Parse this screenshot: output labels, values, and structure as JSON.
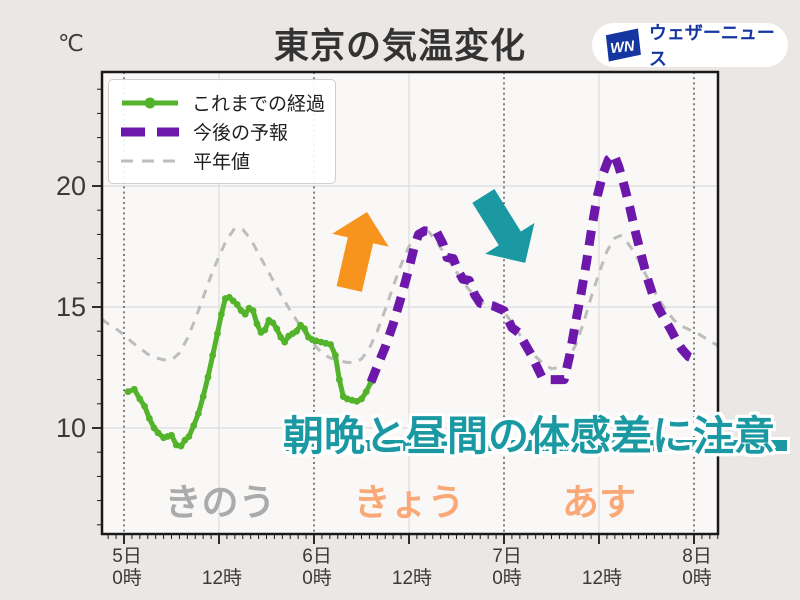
{
  "header": {
    "unit_label": "℃",
    "title": "東京の気温変化"
  },
  "logo": {
    "mark": "WN",
    "name": "ウェザーニュース"
  },
  "legend": {
    "items": [
      {
        "label": "これまでの経過",
        "key": "observed"
      },
      {
        "label": "今後の予報",
        "key": "forecast"
      },
      {
        "label": "平年値",
        "key": "normal"
      }
    ]
  },
  "colors": {
    "observed": "#53b32a",
    "forecast": "#6d18ab",
    "normal": "#bdbdbd",
    "teal": "#1b99a3",
    "orange": "#f7941e",
    "day_past": "#ababab",
    "day_future": "#f9a876",
    "logo_blue": "#1536a0",
    "grid_light": "#dcdcdc",
    "grid_day": "#4d4d4d",
    "axis": "#1a1a1a",
    "tick_text": "#3a3a3a",
    "plot_bg": "#f9f8f7"
  },
  "annotation": {
    "text": "朝晩と昼間の体感差に注意"
  },
  "day_labels": [
    {
      "text": "きのう",
      "t_center": 12,
      "tone": "past"
    },
    {
      "text": "きょう",
      "t_center": 36,
      "tone": "future"
    },
    {
      "text": "あす",
      "t_center": 60,
      "tone": "future"
    }
  ],
  "chart_data": {
    "type": "line",
    "title": "東京の気温変化",
    "ylabel": "℃",
    "x_unit": "hours_since_5th_00",
    "xlim": [
      -2.8,
      75.4
    ],
    "ylim": [
      5.6,
      24.7
    ],
    "y_ticks": [
      10,
      15,
      20
    ],
    "y_minor_step": 1,
    "x_minor_step": 1,
    "x_ticks": [
      {
        "t": 0,
        "day": "5日",
        "time": "0時"
      },
      {
        "t": 12,
        "day": "",
        "time": "12時"
      },
      {
        "t": 24,
        "day": "6日",
        "time": "0時"
      },
      {
        "t": 36,
        "day": "",
        "time": "12時"
      },
      {
        "t": 48,
        "day": "7日",
        "time": "0時"
      },
      {
        "t": 60,
        "day": "",
        "time": "12時"
      },
      {
        "t": 72,
        "day": "8日",
        "time": "0時"
      }
    ],
    "grid_day_lines_t": [
      0,
      24,
      48,
      72
    ],
    "grid_noon_lines_t": [
      12,
      36,
      60
    ],
    "legend_position": "upper-left",
    "series": [
      {
        "name": "これまでの経過",
        "key": "observed",
        "style": "solid-markers",
        "points": [
          [
            0.5,
            11.5
          ],
          [
            1.3,
            11.6
          ],
          [
            2,
            11.2
          ],
          [
            2.6,
            10.9
          ],
          [
            3.2,
            10.4
          ],
          [
            3.8,
            10.0
          ],
          [
            4.3,
            9.8
          ],
          [
            5,
            9.6
          ],
          [
            5.5,
            9.65
          ],
          [
            6,
            9.7
          ],
          [
            6.6,
            9.3
          ],
          [
            7.2,
            9.25
          ],
          [
            7.7,
            9.5
          ],
          [
            8.2,
            9.65
          ],
          [
            8.8,
            10.1
          ],
          [
            9.4,
            10.6
          ],
          [
            10,
            11.3
          ],
          [
            10.6,
            12.1
          ],
          [
            11.2,
            13.0
          ],
          [
            11.8,
            13.9
          ],
          [
            12.3,
            14.7
          ],
          [
            12.8,
            15.35
          ],
          [
            13.3,
            15.4
          ],
          [
            13.8,
            15.25
          ],
          [
            14.3,
            15.1
          ],
          [
            14.8,
            14.85
          ],
          [
            15.3,
            14.7
          ],
          [
            15.8,
            14.95
          ],
          [
            16.3,
            14.85
          ],
          [
            16.8,
            14.3
          ],
          [
            17.3,
            13.95
          ],
          [
            17.8,
            14.05
          ],
          [
            18.3,
            14.45
          ],
          [
            18.8,
            14.35
          ],
          [
            19.3,
            14.1
          ],
          [
            19.8,
            13.75
          ],
          [
            20.3,
            13.55
          ],
          [
            20.8,
            13.8
          ],
          [
            21.3,
            13.9
          ],
          [
            21.8,
            14.0
          ],
          [
            22.3,
            14.25
          ],
          [
            22.8,
            14.1
          ],
          [
            23.3,
            13.75
          ],
          [
            23.8,
            13.65
          ],
          [
            24.3,
            13.6
          ],
          [
            24.9,
            13.55
          ],
          [
            25.5,
            13.5
          ],
          [
            26.1,
            13.45
          ],
          [
            26.7,
            13.0
          ],
          [
            27.2,
            12.0
          ],
          [
            27.7,
            11.3
          ],
          [
            28.2,
            11.2
          ],
          [
            28.8,
            11.15
          ],
          [
            29.4,
            11.1
          ],
          [
            30,
            11.2
          ],
          [
            30.6,
            11.5
          ],
          [
            31.2,
            11.9
          ]
        ]
      },
      {
        "name": "今後の予報",
        "key": "forecast",
        "style": "dashed-bold",
        "points": [
          [
            31.2,
            11.9
          ],
          [
            32,
            12.55
          ],
          [
            33,
            13.35
          ],
          [
            34,
            14.3
          ],
          [
            35,
            15.4
          ],
          [
            36,
            16.6
          ],
          [
            36.6,
            17.4
          ],
          [
            37.2,
            18.0
          ],
          [
            38,
            18.15
          ],
          [
            39.5,
            18.1
          ],
          [
            40.3,
            17.6
          ],
          [
            40.8,
            17.05
          ],
          [
            41.6,
            17.0
          ],
          [
            42.2,
            16.5
          ],
          [
            42.8,
            16.15
          ],
          [
            43.6,
            16.1
          ],
          [
            44.3,
            15.5
          ],
          [
            45,
            15.15
          ],
          [
            45.8,
            15.1
          ],
          [
            46.6,
            15.05
          ],
          [
            47.3,
            14.95
          ],
          [
            48,
            14.85
          ],
          [
            49,
            14.15
          ],
          [
            49.8,
            13.95
          ],
          [
            50.6,
            13.5
          ],
          [
            51.4,
            13.05
          ],
          [
            52.2,
            12.5
          ],
          [
            52.8,
            12.1
          ],
          [
            53.4,
            12.0
          ],
          [
            55.6,
            12.0
          ],
          [
            56.3,
            13.0
          ],
          [
            57,
            14.3
          ],
          [
            57.7,
            15.5
          ],
          [
            58.4,
            16.8
          ],
          [
            59.1,
            18.3
          ],
          [
            59.8,
            19.6
          ],
          [
            60.5,
            20.5
          ],
          [
            61.2,
            21.1
          ],
          [
            61.9,
            21.3
          ],
          [
            62.5,
            20.8
          ],
          [
            63.2,
            20.0
          ],
          [
            63.9,
            19.1
          ],
          [
            64.6,
            18.1
          ],
          [
            65.3,
            17.2
          ],
          [
            66,
            16.3
          ],
          [
            66.8,
            15.5
          ],
          [
            67.5,
            14.95
          ],
          [
            68.2,
            14.55
          ],
          [
            69,
            14.1
          ],
          [
            69.8,
            13.6
          ],
          [
            70.5,
            13.25
          ],
          [
            71.3,
            12.95
          ],
          [
            72,
            12.85
          ]
        ]
      },
      {
        "name": "平年値",
        "key": "normal",
        "style": "dashed-thin",
        "points": [
          [
            -2.8,
            14.5
          ],
          [
            -2,
            14.3
          ],
          [
            -1,
            14.1
          ],
          [
            0,
            13.85
          ],
          [
            1,
            13.55
          ],
          [
            2,
            13.3
          ],
          [
            3,
            13.05
          ],
          [
            4,
            12.9
          ],
          [
            5,
            12.82
          ],
          [
            6,
            12.8
          ],
          [
            7,
            13.1
          ],
          [
            8,
            13.7
          ],
          [
            9,
            14.5
          ],
          [
            10,
            15.4
          ],
          [
            11,
            16.3
          ],
          [
            12,
            17.1
          ],
          [
            13,
            17.8
          ],
          [
            14,
            18.25
          ],
          [
            15,
            18.2
          ],
          [
            16,
            17.8
          ],
          [
            17,
            17.2
          ],
          [
            18,
            16.6
          ],
          [
            19,
            16.0
          ],
          [
            20,
            15.4
          ],
          [
            21,
            14.85
          ],
          [
            22,
            14.35
          ],
          [
            23,
            13.85
          ],
          [
            24,
            13.45
          ],
          [
            25,
            13.1
          ],
          [
            26,
            12.9
          ],
          [
            27,
            12.8
          ],
          [
            28,
            12.72
          ],
          [
            29,
            12.7
          ],
          [
            30,
            12.85
          ],
          [
            31,
            13.3
          ],
          [
            32,
            14.0
          ],
          [
            33,
            14.9
          ],
          [
            34,
            15.85
          ],
          [
            35,
            16.75
          ],
          [
            36,
            17.5
          ],
          [
            37,
            18.1
          ],
          [
            37.7,
            18.25
          ],
          [
            38.5,
            18.1
          ],
          [
            39.5,
            17.7
          ],
          [
            40.5,
            17.2
          ],
          [
            41.5,
            16.7
          ],
          [
            42.5,
            16.2
          ],
          [
            43.5,
            15.75
          ],
          [
            44.5,
            15.4
          ],
          [
            45.5,
            15.1
          ],
          [
            46.5,
            14.95
          ],
          [
            47.2,
            14.88
          ],
          [
            48,
            14.8
          ],
          [
            49,
            14.35
          ],
          [
            50,
            13.85
          ],
          [
            51,
            13.35
          ],
          [
            52,
            12.95
          ],
          [
            53,
            12.65
          ],
          [
            54,
            12.45
          ],
          [
            55,
            12.5
          ],
          [
            56,
            12.75
          ],
          [
            57,
            13.4
          ],
          [
            58,
            14.3
          ],
          [
            59,
            15.4
          ],
          [
            60,
            16.4
          ],
          [
            61,
            17.3
          ],
          [
            62,
            17.85
          ],
          [
            62.7,
            17.95
          ],
          [
            63.5,
            17.7
          ],
          [
            64.5,
            17.25
          ],
          [
            65.5,
            16.6
          ],
          [
            66.5,
            15.95
          ],
          [
            67.5,
            15.35
          ],
          [
            68.5,
            14.85
          ],
          [
            69.5,
            14.45
          ],
          [
            70.5,
            14.2
          ],
          [
            71.5,
            14.05
          ],
          [
            72.5,
            13.9
          ],
          [
            73.5,
            13.7
          ],
          [
            74.5,
            13.5
          ],
          [
            75,
            13.4
          ]
        ]
      }
    ]
  }
}
